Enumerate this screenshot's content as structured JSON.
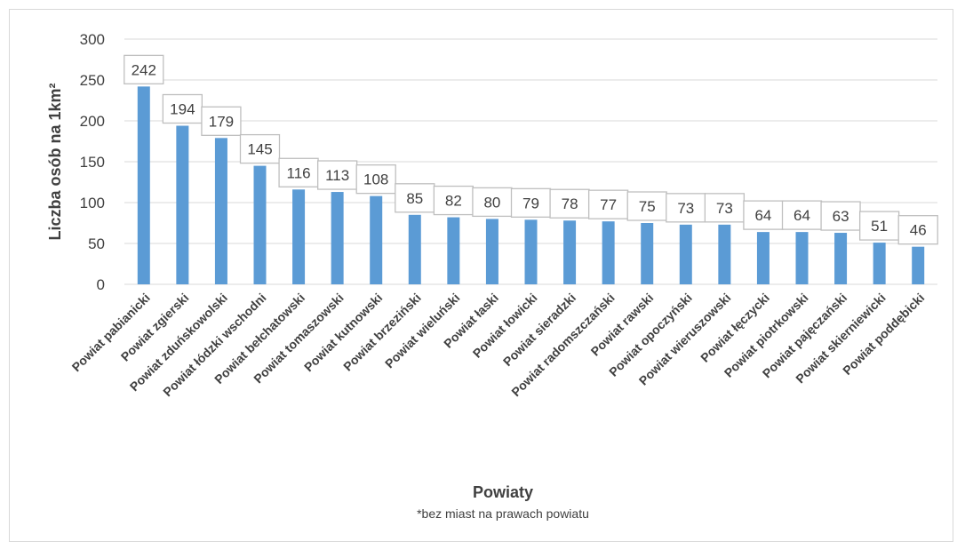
{
  "chart_data": {
    "type": "bar",
    "categories": [
      "Powiat pabianicki",
      "Powiat zgierski",
      "Powiat zduńskowolski",
      "Powiat łódzki wschodni",
      "Powiat bełchatowski",
      "Powiat tomaszowski",
      "Powiat kutnowski",
      "Powiat brzeziński",
      "Powiat wieluński",
      "Powiat łaski",
      "Powiat łowicki",
      "Powiat sieradzki",
      "Powiat radomszczański",
      "Powiat rawski",
      "Powiat opoczyński",
      "Powiat wieruszowski",
      "Powiat łęczycki",
      "Powiat piotrkowski",
      "Powiat pajęczański",
      "Powiat skierniewicki",
      "Powiat poddębicki"
    ],
    "values": [
      242,
      194,
      179,
      145,
      116,
      113,
      108,
      85,
      82,
      80,
      79,
      78,
      77,
      75,
      73,
      73,
      64,
      64,
      63,
      51,
      46
    ],
    "xlabel": "Powiaty",
    "ylabel": "Liczba osób na 1km²",
    "footnote": "*bez miast na prawach powiatu",
    "ylim": [
      0,
      300
    ],
    "yticks": [
      0,
      50,
      100,
      150,
      200,
      250,
      300
    ],
    "grid": true,
    "legend": "none",
    "bar_color": "#5b9bd5",
    "grid_color": "#d9d9d9"
  }
}
